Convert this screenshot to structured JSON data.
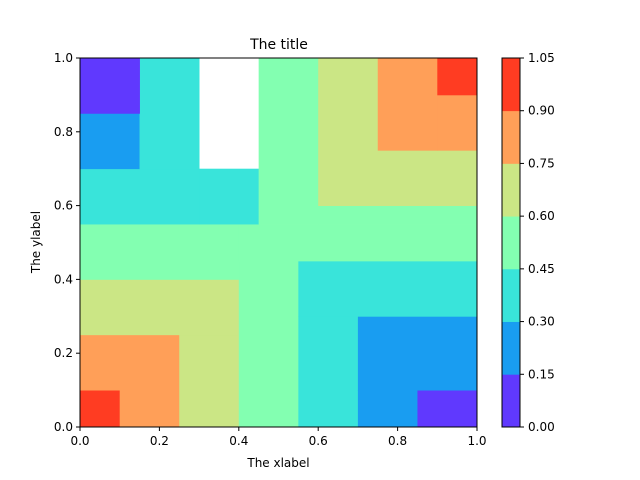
{
  "chart_data": {
    "type": "heatmap",
    "title": "The title",
    "xlabel": "The xlabel",
    "ylabel": "The ylabel",
    "xlim": [
      0,
      1
    ],
    "ylim": [
      0,
      1
    ],
    "x_ticks": [
      "0.0",
      "0.2",
      "0.4",
      "0.6",
      "0.8",
      "1.0"
    ],
    "y_ticks": [
      "0.0",
      "0.2",
      "0.4",
      "0.6",
      "0.8",
      "1.0"
    ],
    "grid": false,
    "colorbar": {
      "boundaries": [
        0.0,
        0.15,
        0.3,
        0.45,
        0.6,
        0.75,
        0.9,
        1.05
      ],
      "tick_labels": [
        "0.00",
        "0.15",
        "0.30",
        "0.45",
        "0.60",
        "0.75",
        "0.90",
        "1.05"
      ],
      "colors": [
        "#6039fe",
        "#199df1",
        "#39e4da",
        "#83ffb1",
        "#cbe685",
        "#ff9f58",
        "#ff3c22"
      ]
    },
    "level_note": "rectangles in data units: [x0, x1, y0, y1, level_index]",
    "regions": [
      [
        0.0,
        0.1,
        0.0,
        0.1,
        6
      ],
      [
        0.1,
        0.25,
        0.0,
        0.1,
        5
      ],
      [
        0.0,
        0.25,
        0.1,
        0.25,
        5
      ],
      [
        0.25,
        0.4,
        0.0,
        0.25,
        4
      ],
      [
        0.0,
        0.4,
        0.25,
        0.4,
        4
      ],
      [
        0.4,
        0.55,
        0.0,
        0.45,
        3
      ],
      [
        0.55,
        0.7,
        0.0,
        0.3,
        2
      ],
      [
        0.7,
        0.85,
        0.0,
        0.1,
        1
      ],
      [
        0.85,
        1.0,
        0.0,
        0.15,
        0
      ],
      [
        0.7,
        1.0,
        0.1,
        0.3,
        1
      ],
      [
        0.55,
        1.0,
        0.3,
        0.45,
        2
      ],
      [
        0.0,
        0.4,
        0.4,
        0.55,
        3
      ],
      [
        0.4,
        1.0,
        0.45,
        0.55,
        3
      ],
      [
        0.0,
        0.3,
        0.55,
        0.7,
        2
      ],
      [
        0.3,
        0.45,
        0.55,
        0.7,
        2
      ],
      [
        0.45,
        0.6,
        0.55,
        1.0,
        3
      ],
      [
        0.6,
        1.0,
        0.55,
        0.6,
        3
      ],
      [
        0.0,
        0.15,
        0.7,
        0.85,
        1
      ],
      [
        0.15,
        0.3,
        0.7,
        1.0,
        2
      ],
      [
        0.0,
        0.15,
        0.85,
        1.0,
        0
      ],
      [
        0.6,
        0.75,
        0.6,
        1.0,
        4
      ],
      [
        0.75,
        1.0,
        0.6,
        0.75,
        4
      ],
      [
        0.75,
        0.9,
        0.75,
        1.0,
        5
      ],
      [
        0.9,
        1.0,
        0.75,
        0.9,
        5
      ],
      [
        0.9,
        1.0,
        0.9,
        1.0,
        6
      ]
    ]
  }
}
